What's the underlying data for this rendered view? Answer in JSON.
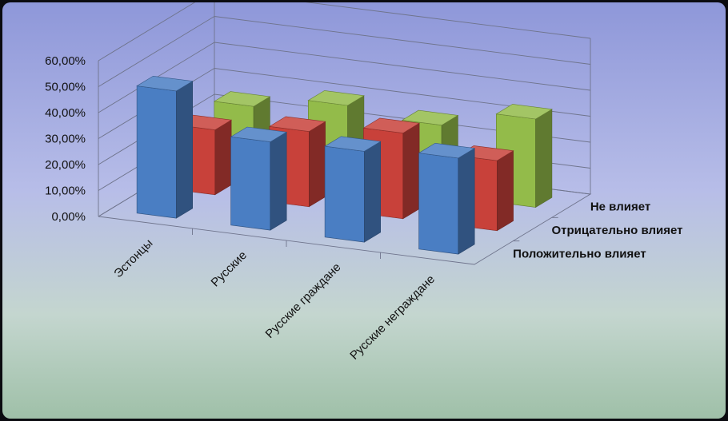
{
  "chart_data": {
    "type": "bar",
    "title": "",
    "xlabel": "",
    "ylabel": "",
    "ylim": [
      0,
      60
    ],
    "y_ticks": [
      "0,00%",
      "10,00%",
      "20,00%",
      "30,00%",
      "40,00%",
      "50,00%",
      "60,00%"
    ],
    "y_tick_values": [
      0,
      10,
      20,
      30,
      40,
      50,
      60
    ],
    "categories": [
      "Эстонцы",
      "Русские",
      "Русские граждане",
      "Русские неграждане"
    ],
    "series": [
      {
        "name": "Положительно влияет",
        "color": "#4a7ec3",
        "values": [
          49,
          34,
          35,
          37
        ]
      },
      {
        "name": "Отрицательно влияет",
        "color": "#c8413a",
        "values": [
          25,
          29,
          33,
          27
        ]
      },
      {
        "name": "Не влияет",
        "color": "#93bb4a",
        "values": [
          25,
          30,
          27,
          34
        ]
      }
    ],
    "chart_kind": "3d-clustered-column",
    "grid": true,
    "background": "blue-to-green vertical gradient"
  }
}
